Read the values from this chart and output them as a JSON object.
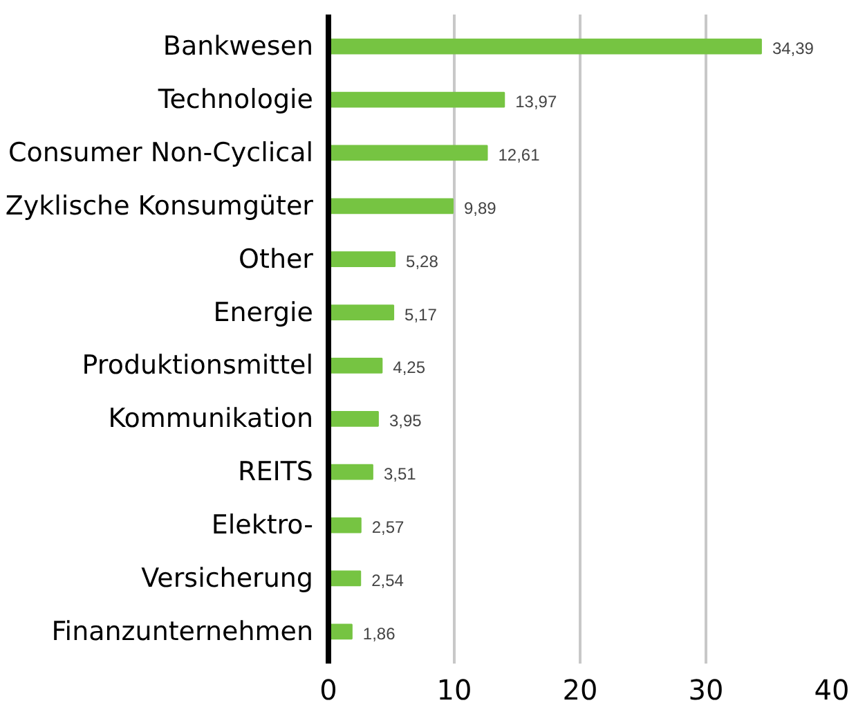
{
  "chart_data": {
    "type": "bar",
    "orientation": "horizontal",
    "categories": [
      "Bankwesen",
      "Technologie",
      "Consumer Non-Cyclical",
      "Zyklische Konsumgüter",
      "Other",
      "Energie",
      "Produktionsmittel",
      "Kommunikation",
      "REITS",
      "Elektro-",
      "Versicherung",
      "Finanzunternehmen"
    ],
    "values": [
      34.39,
      13.97,
      12.61,
      9.89,
      5.28,
      5.17,
      4.25,
      3.95,
      3.51,
      2.57,
      2.54,
      1.86
    ],
    "value_labels": [
      "34,39",
      "13,97",
      "12,61",
      "9,89",
      "5,28",
      "5,17",
      "4,25",
      "3,95",
      "3,51",
      "2,57",
      "2,54",
      "1,86"
    ],
    "color": "#76c442",
    "xlim": [
      0,
      40
    ],
    "xticks": [
      0,
      10,
      20,
      30,
      40
    ],
    "grid": "x"
  }
}
